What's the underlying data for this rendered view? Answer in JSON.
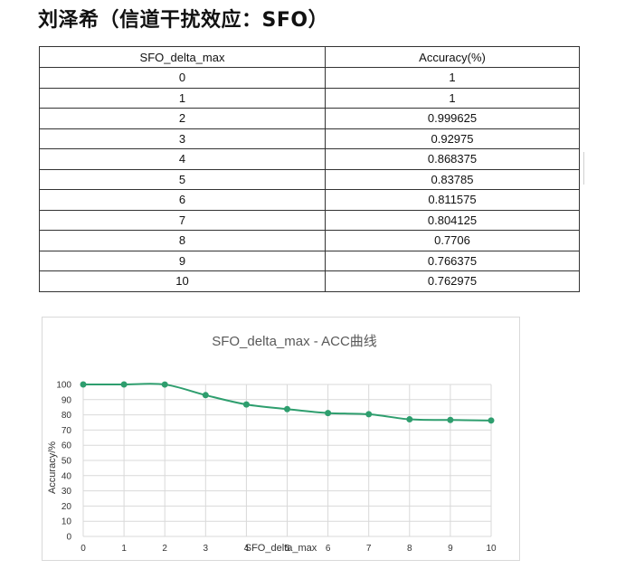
{
  "heading": "刘泽希（信道干扰效应：SFO）",
  "table": {
    "headers": [
      "SFO_delta_max",
      "Accuracy(%)"
    ],
    "rows": [
      [
        "0",
        "1"
      ],
      [
        "1",
        "1"
      ],
      [
        "2",
        "0.999625"
      ],
      [
        "3",
        "0.92975"
      ],
      [
        "4",
        "0.868375"
      ],
      [
        "5",
        "0.83785"
      ],
      [
        "6",
        "0.811575"
      ],
      [
        "7",
        "0.804125"
      ],
      [
        "8",
        "0.7706"
      ],
      [
        "9",
        "0.766375"
      ],
      [
        "10",
        "0.762975"
      ]
    ]
  },
  "chart_data": {
    "type": "line",
    "title": "SFO_delta_max - ACC曲线",
    "xlabel": "SFO_delta_max",
    "ylabel": "Accuracy/%",
    "x": [
      0,
      1,
      2,
      3,
      4,
      5,
      6,
      7,
      8,
      9,
      10
    ],
    "values": [
      100,
      100,
      99.9625,
      92.975,
      86.8375,
      83.785,
      81.1575,
      80.4125,
      77.06,
      76.6375,
      76.2975
    ],
    "xlim": [
      0,
      10
    ],
    "ylim": [
      0,
      100
    ],
    "yticks": [
      "0",
      "10",
      "20",
      "30",
      "40",
      "50",
      "60",
      "70",
      "80",
      "90",
      "100"
    ],
    "xticks": [
      "0",
      "1",
      "2",
      "3",
      "4",
      "5",
      "6",
      "7",
      "8",
      "9",
      "10"
    ],
    "grid": true,
    "legend": "none",
    "line_color": "#2e9e6e",
    "grid_color": "#d9d9d9"
  }
}
